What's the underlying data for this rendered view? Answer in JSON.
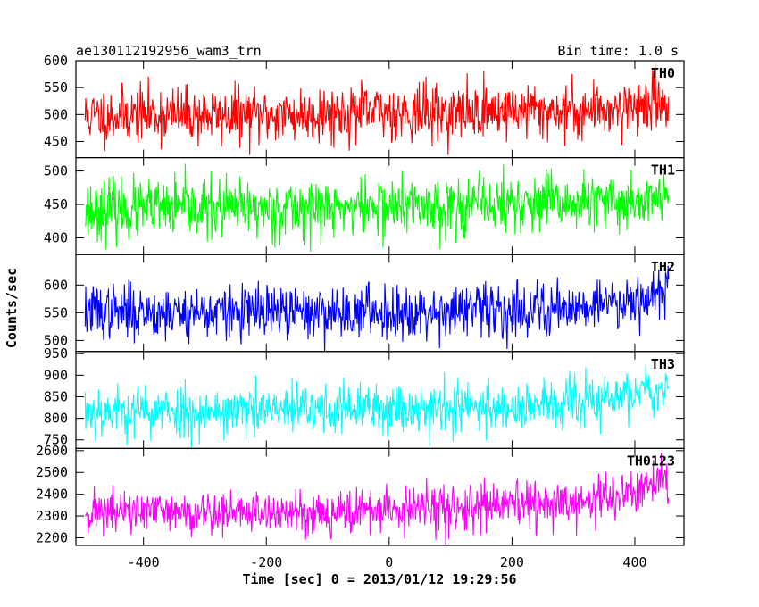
{
  "header": {
    "left_title": "ae130112192956_wam3_trn",
    "right_title": "Bin time: 1.0 s"
  },
  "chart_data": {
    "type": "line",
    "xlabel": "Time [sec] 0 = 2013/01/12 19:29:56",
    "ylabel": "Counts/sec",
    "xlim": [
      -510,
      480
    ],
    "xticks": [
      -400,
      -200,
      0,
      200,
      400
    ],
    "x_start": -495,
    "x_end": 455,
    "x_step": 1,
    "panels": [
      {
        "name": "TH0",
        "color": "#ff0000",
        "ylim": [
          420,
          600
        ],
        "yticks": [
          450,
          500,
          550,
          600
        ],
        "trend": [
          [
            -495,
            497
          ],
          [
            -400,
            500
          ],
          [
            -200,
            498
          ],
          [
            -100,
            502
          ],
          [
            0,
            505
          ],
          [
            100,
            503
          ],
          [
            200,
            508
          ],
          [
            300,
            507
          ],
          [
            380,
            512
          ],
          [
            455,
            525
          ]
        ],
        "noise_sd": 26,
        "seed": 11
      },
      {
        "name": "TH1",
        "color": "#00ff00",
        "ylim": [
          375,
          520
        ],
        "yticks": [
          400,
          450,
          500
        ],
        "trend": [
          [
            -495,
            442
          ],
          [
            -200,
            444
          ],
          [
            0,
            446
          ],
          [
            200,
            450
          ],
          [
            350,
            452
          ],
          [
            455,
            460
          ]
        ],
        "noise_sd": 22,
        "seed": 23
      },
      {
        "name": "TH2",
        "color": "#0000ff",
        "ylim": [
          480,
          655
        ],
        "yticks": [
          500,
          550,
          600
        ],
        "trend": [
          [
            -495,
            552
          ],
          [
            -200,
            550
          ],
          [
            0,
            552
          ],
          [
            200,
            555
          ],
          [
            300,
            560
          ],
          [
            380,
            572
          ],
          [
            455,
            590
          ]
        ],
        "noise_sd": 24,
        "seed": 37
      },
      {
        "name": "TH3",
        "color": "#00ffff",
        "ylim": [
          730,
          955
        ],
        "yticks": [
          750,
          800,
          850,
          900,
          950
        ],
        "trend": [
          [
            -495,
            818
          ],
          [
            -300,
            815
          ],
          [
            -100,
            820
          ],
          [
            0,
            824
          ],
          [
            200,
            826
          ],
          [
            300,
            832
          ],
          [
            380,
            850
          ],
          [
            455,
            880
          ]
        ],
        "noise_sd": 30,
        "seed": 53
      },
      {
        "name": "TH0123",
        "color": "#ff00ff",
        "ylim": [
          2165,
          2610
        ],
        "yticks": [
          2200,
          2300,
          2400,
          2500,
          2600
        ],
        "trend": [
          [
            -495,
            2320
          ],
          [
            -300,
            2315
          ],
          [
            -100,
            2318
          ],
          [
            0,
            2325
          ],
          [
            150,
            2340
          ],
          [
            300,
            2355
          ],
          [
            380,
            2395
          ],
          [
            455,
            2460
          ]
        ],
        "noise_sd": 52,
        "seed": 71
      }
    ]
  }
}
